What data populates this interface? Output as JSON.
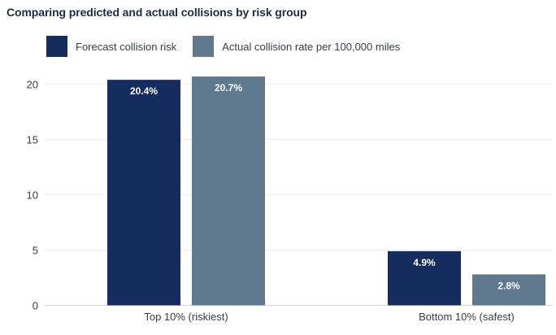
{
  "chart_data": {
    "type": "bar",
    "title": "Comparing predicted and actual collisions by risk group",
    "categories": [
      "Top 10% (riskiest)",
      "Bottom 10% (safest)"
    ],
    "series": [
      {
        "name": "Forecast collision risk",
        "values": [
          20.4,
          4.9
        ],
        "labels": [
          "20.4%",
          "4.9%"
        ],
        "color": "#142d5e"
      },
      {
        "name": "Actual collision rate per 100,000 miles",
        "values": [
          20.7,
          2.8
        ],
        "labels": [
          "20.7%",
          "2.8%"
        ],
        "color": "#5f7a8f"
      }
    ],
    "ylim": [
      0,
      22
    ],
    "yticks": [
      0,
      5,
      10,
      15,
      20
    ],
    "grid": true,
    "legend": "top-left"
  }
}
